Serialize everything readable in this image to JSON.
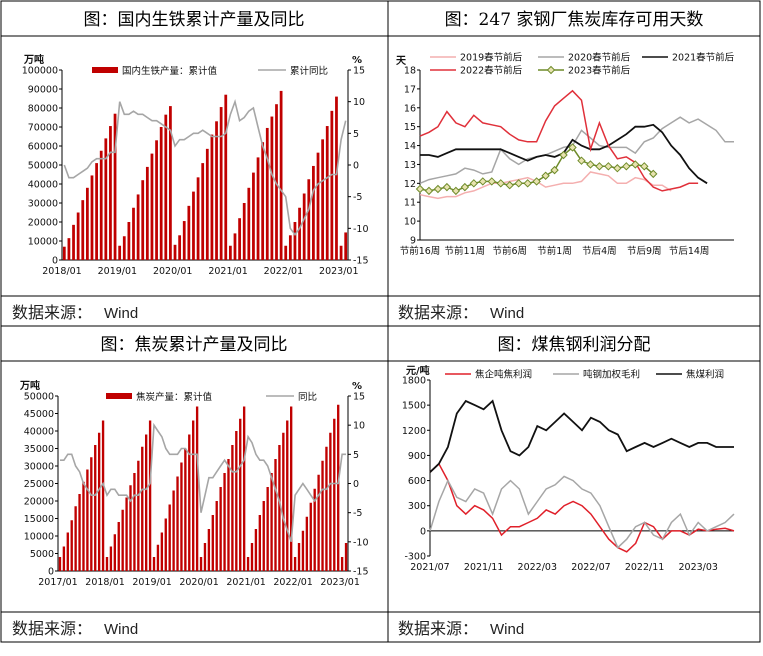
{
  "panels": [
    {
      "title": "图：国内生铁累计产量及同比",
      "source_label": "数据来源：",
      "source_value": "Wind"
    },
    {
      "title": "图：247 家钢厂焦炭库存可用天数",
      "source_label": "数据来源：",
      "source_value": "Wind"
    },
    {
      "title": "图：焦炭累计产量及同比",
      "source_label": "数据来源：",
      "source_value": "Wind"
    },
    {
      "title": "图：煤焦钢利润分配",
      "source_label": "数据来源：",
      "source_value": "Wind"
    }
  ],
  "chart_data": [
    {
      "type": "bar",
      "ylabel": "万吨",
      "y2label": "%",
      "ylim": [
        0,
        100000
      ],
      "yticks": [
        0,
        10000,
        20000,
        30000,
        40000,
        50000,
        60000,
        70000,
        80000,
        90000,
        100000
      ],
      "y2lim": [
        -15,
        15
      ],
      "y2ticks": [
        15,
        10,
        5,
        0,
        -5,
        -10,
        -15
      ],
      "xticks": [
        "2018/01",
        "2019/01",
        "2020/01",
        "2021/01",
        "2022/01",
        "2023/01"
      ],
      "legend_position": "top",
      "colors": {
        "bar": "#C00000",
        "line": "#A6A6A6"
      },
      "series": [
        {
          "name": "国内生铁产量：累计值",
          "kind": "bar",
          "values": [
            7000,
            11500,
            18500,
            25000,
            31500,
            38000,
            44500,
            51000,
            57500,
            64000,
            70500,
            77000,
            7500,
            12500,
            20000,
            27500,
            34500,
            42000,
            49000,
            56000,
            63000,
            70000,
            76500,
            81000,
            8000,
            13000,
            20500,
            28500,
            36000,
            43500,
            51000,
            58500,
            66000,
            73000,
            80500,
            87000,
            7500,
            14000,
            22000,
            30000,
            38000,
            46000,
            54000,
            62000,
            69500,
            75500,
            82000,
            89000,
            7500,
            13000,
            20000,
            27500,
            35000,
            42500,
            49500,
            56500,
            63500,
            70500,
            78500,
            86000,
            7500,
            14500
          ]
        },
        {
          "name": "累计同比",
          "kind": "line",
          "values": [
            0,
            -2,
            -2,
            -1.5,
            -1,
            -0.5,
            0.5,
            1,
            1,
            1,
            2,
            2,
            10,
            8,
            8,
            8.5,
            8,
            8,
            7.5,
            7,
            7,
            6.5,
            6,
            5.5,
            3,
            4,
            4,
            4.5,
            5,
            5,
            5.5,
            5,
            4.5,
            4.5,
            4.5,
            5,
            8,
            10,
            7,
            7.5,
            8.5,
            9,
            6,
            3,
            1,
            -1.5,
            -3,
            -4,
            -5,
            -10,
            -11,
            -10,
            -8.5,
            -7,
            -4,
            -3,
            -2.5,
            -2,
            -1.5,
            -1.5,
            4,
            7
          ]
        }
      ]
    },
    {
      "type": "line",
      "ylabel": "天",
      "ylim": [
        9,
        18
      ],
      "yticks": [
        9,
        10,
        11,
        12,
        13,
        14,
        15,
        16,
        17,
        18
      ],
      "xticks": [
        "节前16周",
        "节前11周",
        "节前6周",
        "节前1周",
        "节后4周",
        "节后9周",
        "节后14周"
      ],
      "legend_position": "top",
      "series": [
        {
          "name": "2019春节前后",
          "color": "#F4AFAF",
          "values": [
            11.4,
            11.3,
            11.2,
            11.3,
            11.3,
            11.5,
            11.6,
            11.8,
            12.0,
            12.0,
            12.1,
            12.2,
            12.3,
            12.1,
            11.8,
            11.9,
            12.0,
            12.0,
            12.1,
            12.6,
            12.5,
            12.4,
            12.0,
            12.0,
            12.3,
            12.2,
            11.9,
            11.9,
            11.6
          ]
        },
        {
          "name": "2020春节前后",
          "color": "#A6A6A6",
          "values": [
            12.0,
            12.2,
            12.3,
            12.4,
            12.5,
            12.8,
            12.7,
            12.5,
            12.6,
            13.8,
            13.3,
            13.0,
            13.3,
            13.4,
            13.5,
            13.7,
            13.9,
            14.0,
            14.8,
            14.4,
            14.0,
            13.9,
            13.9,
            13.9,
            13.6,
            14.2,
            14.4,
            14.9,
            15.2,
            15.5,
            15.2,
            15.4,
            15.1,
            14.8,
            14.2,
            14.2
          ]
        },
        {
          "name": "2021春节前后",
          "color": "#111111",
          "values": [
            13.5,
            13.5,
            13.4,
            13.6,
            13.8,
            13.8,
            13.8,
            13.8,
            13.8,
            13.8,
            13.6,
            13.4,
            13.2,
            13.4,
            13.5,
            13.4,
            13.6,
            14.3,
            14.0,
            13.8,
            13.8,
            14.0,
            14.3,
            14.6,
            15.0,
            15.0,
            15.1,
            14.7,
            14.0,
            13.5,
            12.8,
            12.3,
            12.0
          ]
        },
        {
          "name": "2022春节前后",
          "color": "#E0303A",
          "values": [
            14.5,
            14.7,
            15.0,
            15.8,
            15.2,
            15.0,
            15.6,
            15.2,
            15.1,
            15.0,
            14.6,
            14.3,
            14.2,
            14.2,
            15.3,
            16.1,
            16.5,
            16.9,
            16.4,
            13.8,
            15.2,
            14.0,
            13.3,
            13.4,
            13.1,
            12.3,
            11.8,
            11.6,
            11.7,
            11.8,
            12.0,
            12.0
          ]
        },
        {
          "name": "2023春节前后",
          "color": "#6E8B2A",
          "values": [
            11.7,
            11.6,
            11.7,
            11.8,
            11.6,
            11.8,
            12.0,
            12.1,
            12.1,
            12.0,
            11.9,
            12.0,
            12.0,
            12.1,
            12.4,
            12.7,
            13.5,
            13.9,
            13.2,
            13.0,
            12.9,
            12.9,
            12.8,
            12.9,
            13.0,
            12.9,
            12.5
          ]
        }
      ]
    },
    {
      "type": "bar",
      "ylabel": "万吨",
      "y2label": "%",
      "ylim": [
        0,
        50000
      ],
      "yticks": [
        0,
        5000,
        10000,
        15000,
        20000,
        25000,
        30000,
        35000,
        40000,
        45000,
        50000
      ],
      "y2lim": [
        -15,
        15
      ],
      "y2ticks": [
        15,
        10,
        5,
        0,
        -5,
        -10,
        -15
      ],
      "xticks": [
        "2017/01",
        "2018/01",
        "2019/01",
        "2020/01",
        "2021/01",
        "2022/01",
        "2023/01"
      ],
      "legend_position": "top",
      "colors": {
        "bar": "#C00000",
        "line": "#A6A6A6"
      },
      "series": [
        {
          "name": "焦炭产量：累计值",
          "kind": "bar",
          "values": [
            4000,
            7000,
            11000,
            14500,
            18500,
            22000,
            25500,
            29000,
            32500,
            36000,
            39500,
            43000,
            4000,
            7000,
            10500,
            14000,
            17500,
            21000,
            24500,
            28000,
            31500,
            35500,
            39000,
            43000,
            4000,
            7500,
            11000,
            15000,
            19000,
            23000,
            27000,
            31000,
            35000,
            39000,
            43000,
            47000,
            4000,
            8000,
            12000,
            16000,
            20000,
            24000,
            28000,
            32000,
            36000,
            40000,
            43500,
            47000,
            4000,
            8000,
            12000,
            16000,
            20000,
            24000,
            28000,
            32000,
            36000,
            39500,
            43000,
            47000,
            4000,
            8000,
            11500,
            15500,
            19500,
            23500,
            27500,
            31500,
            35500,
            39500,
            43500,
            47500,
            4000,
            8000
          ]
        },
        {
          "name": "同比",
          "kind": "line",
          "values": [
            4,
            4,
            5,
            5,
            3,
            2,
            0,
            -1,
            -2,
            -2,
            -1,
            0,
            -2,
            -1,
            -1,
            -2,
            -2,
            -2,
            -3,
            -2,
            -2,
            -1,
            -1,
            0,
            10,
            9,
            8,
            6,
            5,
            5,
            5,
            6,
            6,
            5,
            5,
            5,
            -5,
            -2,
            1,
            1,
            2,
            3,
            4,
            3,
            2,
            2,
            3,
            4,
            8,
            7,
            5,
            4,
            4,
            3,
            1,
            -1,
            -3,
            -6,
            -8,
            -10,
            -2,
            -1,
            0,
            -1,
            -2,
            -3,
            -2,
            -1,
            -1,
            0,
            0,
            0,
            5,
            5
          ]
        }
      ]
    },
    {
      "type": "line",
      "ylabel": "元/吨",
      "ylim": [
        -300,
        1800
      ],
      "yticks": [
        -300,
        0,
        300,
        600,
        900,
        1200,
        1500,
        1800
      ],
      "xticks": [
        "2021/07",
        "2021/11",
        "2022/03",
        "2022/07",
        "2022/11",
        "2023/03"
      ],
      "legend_position": "top",
      "series": [
        {
          "name": "焦企吨焦利润",
          "color": "#E0202A",
          "values": [
            700,
            800,
            600,
            300,
            200,
            300,
            250,
            150,
            -50,
            50,
            50,
            100,
            150,
            250,
            200,
            300,
            350,
            300,
            200,
            50,
            -100,
            -200,
            -250,
            -150,
            100,
            50,
            -100,
            0,
            0,
            -50,
            20,
            0,
            20,
            30,
            0
          ]
        },
        {
          "name": "吨钢加权毛利",
          "color": "#A6A6A6",
          "values": [
            0,
            350,
            600,
            400,
            350,
            500,
            450,
            200,
            500,
            600,
            500,
            200,
            350,
            500,
            550,
            650,
            600,
            500,
            450,
            300,
            50,
            -200,
            -100,
            50,
            100,
            -50,
            -100,
            100,
            200,
            -50,
            100,
            0,
            50,
            100,
            200
          ]
        },
        {
          "name": "焦煤利润",
          "color": "#111111",
          "values": [
            700,
            800,
            1000,
            1400,
            1550,
            1500,
            1450,
            1550,
            1200,
            950,
            900,
            1000,
            1250,
            1200,
            1300,
            1400,
            1300,
            1200,
            1350,
            1300,
            1200,
            1150,
            950,
            1000,
            1050,
            1000,
            1050,
            1100,
            1050,
            1000,
            1050,
            1050,
            1000,
            1000,
            1000
          ]
        }
      ]
    }
  ]
}
